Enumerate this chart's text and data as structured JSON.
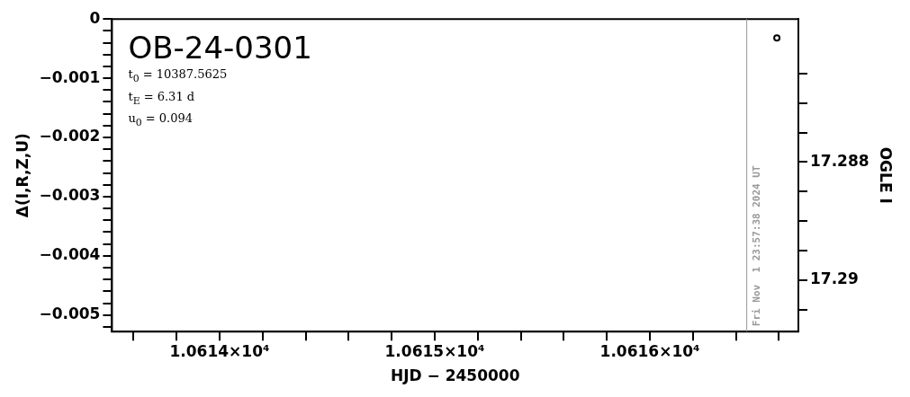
{
  "chart_data": {
    "type": "scatter",
    "title": "OB-24-0301",
    "xlabel": "HJD − 2450000",
    "ylabel": "Δ(I,R,Z,U)",
    "y2label": "OGLE I",
    "annotations": [
      "t$_{0}$ = 10387.5625",
      "t$_{E}$ = 6.31 d",
      "u$_{0}$ = 0.094",
      {
        "text": "Fri Nov  1 23:57:38 2024 UT",
        "x": 10616.45
      }
    ],
    "series": [
      {
        "x": [
          10616.59
        ],
        "values": [
          17.2859
        ],
        "color": "#000000",
        "axis": "y2"
      }
    ],
    "marker": "circle",
    "grid": false,
    "legend": false,
    "xlim": [
      10613.5,
      10616.69
    ],
    "xticks": [
      {
        "value": 10613.6,
        "label": null
      },
      {
        "value": 10613.8,
        "label": null
      },
      {
        "value": 10614,
        "label": "1.0614×10⁴"
      },
      {
        "value": 10614.2,
        "label": null
      },
      {
        "value": 10614.4,
        "label": null
      },
      {
        "value": 10614.6,
        "label": null
      },
      {
        "value": 10614.8,
        "label": null
      },
      {
        "value": 10615,
        "label": "1.0615×10⁴"
      },
      {
        "value": 10615.2,
        "label": null
      },
      {
        "value": 10615.4,
        "label": null
      },
      {
        "value": 10615.6,
        "label": null
      },
      {
        "value": 10615.8,
        "label": null
      },
      {
        "value": 10616,
        "label": "1.0616×10⁴"
      },
      {
        "value": 10616.2,
        "label": null
      },
      {
        "value": 10616.4,
        "label": null
      },
      {
        "value": 10616.6,
        "label": null
      }
    ],
    "ylim": [
      -0.00528,
      0
    ],
    "yticks": [
      0,
      {
        "value": -0.0002,
        "label": null
      },
      {
        "value": -0.0004,
        "label": null
      },
      {
        "value": -0.0006,
        "label": null
      },
      {
        "value": -0.0008,
        "label": null
      },
      {
        "value": -0.001,
        "label": "−0.001"
      },
      {
        "value": -0.0012,
        "label": null
      },
      {
        "value": -0.0014,
        "label": null
      },
      {
        "value": -0.0016,
        "label": null
      },
      {
        "value": -0.0018,
        "label": null
      },
      {
        "value": -0.002,
        "label": "−0.002"
      },
      {
        "value": -0.0022,
        "label": null
      },
      {
        "value": -0.0024,
        "label": null
      },
      {
        "value": -0.0026,
        "label": null
      },
      {
        "value": -0.0028,
        "label": null
      },
      {
        "value": -0.003,
        "label": "−0.003"
      },
      {
        "value": -0.0032,
        "label": null
      },
      {
        "value": -0.0034,
        "label": null
      },
      {
        "value": -0.0036,
        "label": null
      },
      {
        "value": -0.0038,
        "label": null
      },
      {
        "value": -0.004,
        "label": "−0.004"
      },
      {
        "value": -0.0042,
        "label": null
      },
      {
        "value": -0.0044,
        "label": null
      },
      {
        "value": -0.0046,
        "label": null
      },
      {
        "value": -0.0048,
        "label": null
      },
      {
        "value": -0.005,
        "label": "−0.005"
      },
      {
        "value": -0.0052,
        "label": null
      }
    ],
    "y2lim": [
      17.29087,
      17.28558
    ],
    "y2ticks": [
      {
        "value": 17.2865,
        "label": null
      },
      {
        "value": 17.287,
        "label": null
      },
      {
        "value": 17.2875,
        "label": null
      },
      17.288,
      {
        "value": 17.2885,
        "label": null
      },
      {
        "value": 17.289,
        "label": null
      },
      {
        "value": 17.2895,
        "label": null
      },
      17.29,
      {
        "value": 17.2905,
        "label": null
      }
    ],
    "ref_lines": [
      {
        "axis": "x",
        "value": 10616.45,
        "color": "#999999"
      }
    ]
  }
}
